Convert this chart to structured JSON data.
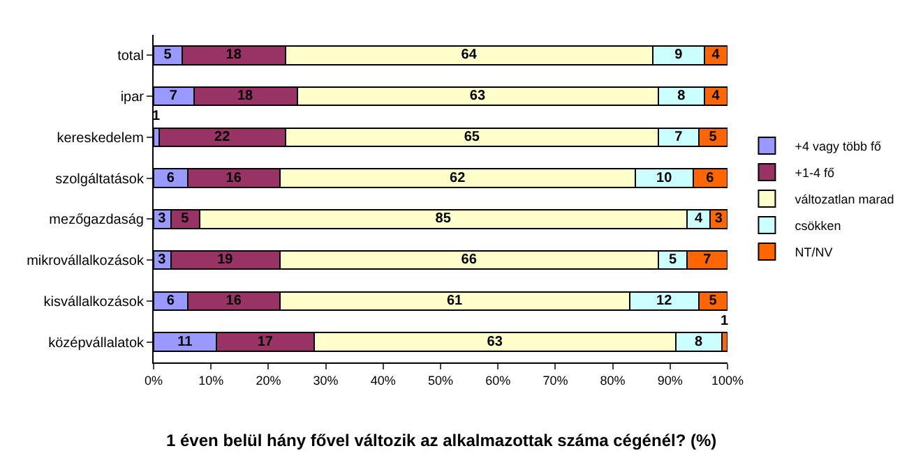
{
  "chart_data": {
    "type": "bar",
    "orientation": "horizontal",
    "stacked": true,
    "data_labels": true,
    "title": "1 éven belül hány fővel változik az alkalmazottak száma cégénél? (%)",
    "categories": [
      "total",
      "ipar",
      "kereskedelem",
      "szolgáltatások",
      "mezőgazdaság",
      "mikrovállalkozások",
      "kisvállalkozások",
      "középvállalatok"
    ],
    "series": [
      {
        "name": "+4 vagy több fő",
        "color": "#9999ff",
        "values": [
          5,
          7,
          1,
          6,
          3,
          3,
          6,
          11
        ]
      },
      {
        "name": "+1-4 fő",
        "color": "#993366",
        "values": [
          18,
          18,
          22,
          16,
          5,
          19,
          16,
          17
        ]
      },
      {
        "name": "változatlan marad",
        "color": "#ffffcc",
        "values": [
          64,
          63,
          65,
          62,
          85,
          66,
          61,
          63
        ]
      },
      {
        "name": "csökken",
        "color": "#ccffff",
        "values": [
          9,
          8,
          7,
          10,
          4,
          5,
          12,
          8
        ]
      },
      {
        "name": "NT/NV",
        "color": "#ff6600",
        "values": [
          4,
          4,
          5,
          6,
          3,
          7,
          5,
          1
        ]
      }
    ],
    "xlim": [
      0,
      100
    ],
    "xticks": [
      {
        "value": 0,
        "label": "0%"
      },
      {
        "value": 10,
        "label": "10%"
      },
      {
        "value": 20,
        "label": "20%"
      },
      {
        "value": 30,
        "label": "30%"
      },
      {
        "value": 40,
        "label": "40%"
      },
      {
        "value": 50,
        "label": "50%"
      },
      {
        "value": 60,
        "label": "60%"
      },
      {
        "value": 70,
        "label": "70%"
      },
      {
        "value": 80,
        "label": "80%"
      },
      {
        "value": 90,
        "label": "90%"
      },
      {
        "value": 100,
        "label": "100%"
      }
    ],
    "legend": "right"
  }
}
